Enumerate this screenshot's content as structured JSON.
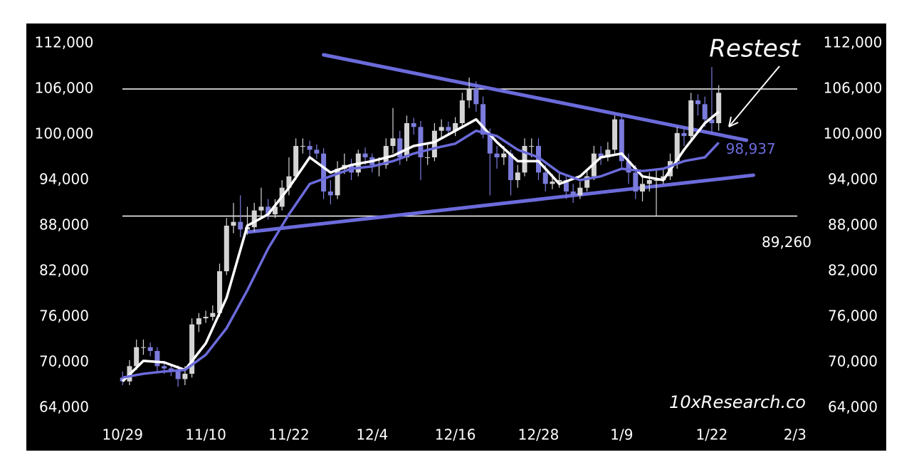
{
  "chart_data": {
    "type": "candlestick",
    "x": [
      0,
      1,
      2,
      3,
      4,
      5,
      6,
      7,
      8,
      9,
      10,
      11,
      12,
      13,
      14,
      15,
      16,
      17,
      18,
      19,
      20,
      21,
      22,
      23,
      24,
      25,
      26,
      27,
      28,
      29,
      30,
      31,
      32,
      33,
      34,
      35,
      36,
      37,
      38,
      39,
      40,
      41,
      42,
      43,
      44,
      45,
      46,
      47,
      48,
      49,
      50,
      51,
      52,
      53,
      54,
      55,
      56,
      57,
      58,
      59,
      60,
      61,
      62,
      63,
      64,
      65,
      66,
      67,
      68,
      69,
      70,
      71,
      72,
      73,
      74,
      75,
      76,
      77,
      78,
      79,
      80,
      81,
      82,
      83,
      84,
      85,
      86
    ],
    "open": [
      68000,
      67500,
      69500,
      72000,
      72000,
      71500,
      69500,
      69200,
      69000,
      67800,
      68500,
      75000,
      75800,
      76000,
      76500,
      82000,
      88000,
      88500,
      87500,
      87800,
      90000,
      90500,
      89500,
      90500,
      93000,
      94500,
      98500,
      98500,
      98000,
      97500,
      92500,
      92000,
      95500,
      96000,
      95000,
      97500,
      97000,
      96000,
      96000,
      98500,
      99500,
      97000,
      101500,
      101000,
      97000,
      97000,
      100500,
      101000,
      100500,
      101500,
      104500,
      106000,
      104000,
      100000,
      97500,
      97000,
      97500,
      94000,
      95000,
      98500,
      98500,
      95000,
      93500,
      93800,
      94000,
      92500,
      92000,
      93000,
      94500,
      97500,
      97000,
      98000,
      102000,
      96500,
      95000,
      92500,
      93500,
      94000,
      94000,
      94500,
      96500,
      100200,
      99800,
      104500,
      104000,
      102000,
      101500
    ],
    "high": [
      68800,
      70300,
      73000,
      73000,
      72600,
      72000,
      70200,
      69800,
      69600,
      69500,
      75800,
      76500,
      76800,
      77500,
      83000,
      89000,
      91000,
      92000,
      90500,
      91000,
      93000,
      91500,
      91500,
      94000,
      97000,
      99500,
      99500,
      99200,
      98700,
      98200,
      94000,
      96500,
      97500,
      96800,
      98000,
      98300,
      97500,
      97000,
      99500,
      103500,
      100500,
      102500,
      102200,
      101800,
      99000,
      101500,
      102000,
      101700,
      102300,
      105500,
      107500,
      107000,
      105000,
      100800,
      98500,
      98500,
      98000,
      96000,
      99500,
      99500,
      99500,
      96000,
      94800,
      95000,
      94800,
      93500,
      93800,
      95500,
      98500,
      98500,
      99000,
      102500,
      102500,
      97500,
      96000,
      94500,
      95000,
      95500,
      95500,
      97500,
      101000,
      101000,
      105500,
      105300,
      105000,
      108900,
      106500
    ],
    "low": [
      67000,
      67000,
      69000,
      71000,
      70800,
      68800,
      68500,
      68200,
      66800,
      67000,
      68000,
      74000,
      75200,
      75500,
      76000,
      81500,
      87000,
      86500,
      86800,
      87200,
      89300,
      88800,
      89000,
      90000,
      92000,
      94000,
      97500,
      97000,
      96800,
      91500,
      90800,
      91500,
      94800,
      94000,
      94500,
      96000,
      95000,
      94500,
      95500,
      97500,
      96000,
      96500,
      100000,
      94000,
      96000,
      96500,
      99500,
      99800,
      99800,
      101000,
      103500,
      103000,
      99500,
      92000,
      95500,
      96000,
      92000,
      93000,
      94500,
      97000,
      94000,
      92500,
      92800,
      93000,
      91500,
      91000,
      91500,
      92500,
      94000,
      96000,
      96500,
      97500,
      95500,
      93500,
      91500,
      91200,
      92500,
      89300,
      93500,
      94000,
      95500,
      98500,
      99300,
      102500,
      101000,
      100000,
      100500
    ],
    "close": [
      67500,
      69500,
      72000,
      72000,
      71500,
      69500,
      69200,
      69000,
      67800,
      68500,
      75000,
      75800,
      76000,
      76500,
      82000,
      88000,
      88500,
      87500,
      87800,
      90000,
      90500,
      89500,
      90500,
      93000,
      94500,
      98500,
      98500,
      98000,
      97500,
      92500,
      92000,
      95500,
      96000,
      95000,
      97500,
      97000,
      96000,
      96000,
      98500,
      99500,
      97000,
      101500,
      101000,
      97000,
      97000,
      100500,
      101000,
      100500,
      101500,
      104500,
      106000,
      104000,
      100000,
      97500,
      97000,
      97500,
      94000,
      95000,
      98500,
      98500,
      95000,
      93500,
      93800,
      94000,
      92500,
      92000,
      93000,
      94500,
      97500,
      97000,
      98000,
      102000,
      96500,
      95000,
      92500,
      93500,
      94000,
      94000,
      94500,
      96500,
      100200,
      99800,
      104500,
      104000,
      102000,
      101500,
      105500
    ],
    "up_color": "#d4d4d4",
    "down_color": "#7b7bdc",
    "series": [
      {
        "color": "#ffffffff",
        "x": [
          0,
          3,
          6,
          9,
          12,
          15,
          18,
          21,
          24,
          27,
          30,
          33,
          36,
          39,
          42,
          45,
          48,
          51,
          54,
          57,
          60,
          63,
          66,
          69,
          72,
          75,
          78,
          81,
          84,
          86
        ],
        "values": [
          67500,
          70200,
          70000,
          69000,
          72500,
          78500,
          88000,
          89500,
          93000,
          97000,
          95000,
          96000,
          96500,
          97200,
          98500,
          99000,
          100500,
          102000,
          99000,
          96500,
          96500,
          93500,
          94500,
          97000,
          97500,
          94500,
          94000,
          98000,
          101500,
          103000
        ]
      },
      {
        "color": "#6b6bdb",
        "x": [
          0,
          3,
          6,
          9,
          12,
          15,
          18,
          21,
          24,
          27,
          30,
          33,
          36,
          39,
          42,
          45,
          48,
          51,
          54,
          57,
          60,
          63,
          66,
          69,
          72,
          75,
          78,
          81,
          84,
          86
        ],
        "values": [
          68000,
          68500,
          68800,
          69000,
          71000,
          74500,
          79500,
          85000,
          89500,
          93500,
          94500,
          95500,
          95800,
          96500,
          97500,
          98200,
          98800,
          100500,
          99800,
          98000,
          97000,
          95000,
          94000,
          94500,
          95500,
          95200,
          95500,
          96500,
          97000,
          98937
        ],
        "end_label": "98,937"
      }
    ],
    "trendlines": [
      {
        "x": [
          29,
          90
        ],
        "y": [
          110500,
          99250
        ],
        "color": "#6b6bdb"
      },
      {
        "x": [
          18,
          91
        ],
        "y": [
          87150,
          94650
        ],
        "color": "#6b6bdb"
      }
    ],
    "hlines": [
      {
        "value": 106000
      },
      {
        "value": 89260,
        "label": "89,260"
      }
    ],
    "annotation": "Restest",
    "watermark": "10xResearch.co",
    "xlim": [
      -3,
      100
    ],
    "xticks": [
      {
        "value": 0,
        "label": "10/29"
      },
      {
        "value": 12,
        "label": "11/10"
      },
      {
        "value": 24,
        "label": "11/22"
      },
      {
        "value": 36,
        "label": "12/4"
      },
      {
        "value": 48,
        "label": "12/16"
      },
      {
        "value": 60,
        "label": "12/28"
      },
      {
        "value": 72,
        "label": "1/9"
      },
      {
        "value": 85,
        "label": "1/22"
      },
      {
        "value": 97,
        "label": "2/3"
      }
    ],
    "ylim": [
      63000,
      113000
    ],
    "yticks": [
      {
        "value": 64000,
        "label": "64,000"
      },
      {
        "value": 70000,
        "label": "70,000"
      },
      {
        "value": 76000,
        "label": "76,000"
      },
      {
        "value": 82000,
        "label": "82,000"
      },
      {
        "value": 88000,
        "label": "88,000"
      },
      {
        "value": 94000,
        "label": "94,000"
      },
      {
        "value": 100000,
        "label": "100,000"
      },
      {
        "value": 106000,
        "label": "106,000"
      },
      {
        "value": 112000,
        "label": "112,000"
      }
    ]
  }
}
